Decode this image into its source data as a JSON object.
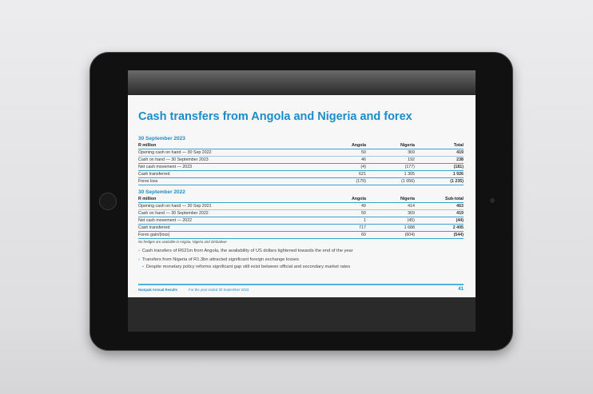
{
  "slide": {
    "title": "Cash transfers from Angola and Nigeria and forex",
    "tables": [
      {
        "heading": "30 September 2023",
        "columns": [
          "R million",
          "Angola",
          "Nigeria",
          "Total"
        ],
        "rows": [
          [
            "Opening cash on hand — 30 Sep 2022",
            "50",
            "369",
            "419"
          ],
          [
            "Cash on hand — 30 September 2023",
            "46",
            "192",
            "238"
          ],
          [
            "Net cash movement — 2023",
            "(4)",
            "(177)",
            "(181)"
          ],
          [
            "Cash transferred",
            "621",
            "1 305",
            "1 926"
          ],
          [
            "Forex loss",
            "(179)",
            "(1 056)",
            "(1 235)"
          ]
        ]
      },
      {
        "heading": "30 September 2022",
        "columns": [
          "R million",
          "Angola",
          "Nigeria",
          "Sub-total"
        ],
        "rows": [
          [
            "Opening cash on hand — 30 Sep 2021",
            "49",
            "414",
            "463"
          ],
          [
            "Cash on hand — 30 September 2022",
            "50",
            "369",
            "419"
          ],
          [
            "Net cash movement — 2022",
            "1",
            "(45)",
            "(44)"
          ],
          [
            "Cash transferred",
            "717",
            "1 688",
            "2 405"
          ],
          [
            "Forex gain/(loss)",
            "60",
            "(604)",
            "(544)"
          ]
        ]
      }
    ],
    "note": "No hedges are available in Angola, Nigeria and Zimbabwe",
    "bullets": [
      "Cash transfers of R621m from Angola, the availability of US dollars tightened towards the end of the year",
      "Transfers from Nigeria of R1.3bn attracted significant foreign exchange losses"
    ],
    "sub_bullet": "Despite monetary policy reforms significant gap still exist between official and secondary market rates",
    "footer": {
      "brand": "Nampak Annual Results",
      "period": "For the year ended 30 September 2023",
      "page": "41"
    }
  }
}
